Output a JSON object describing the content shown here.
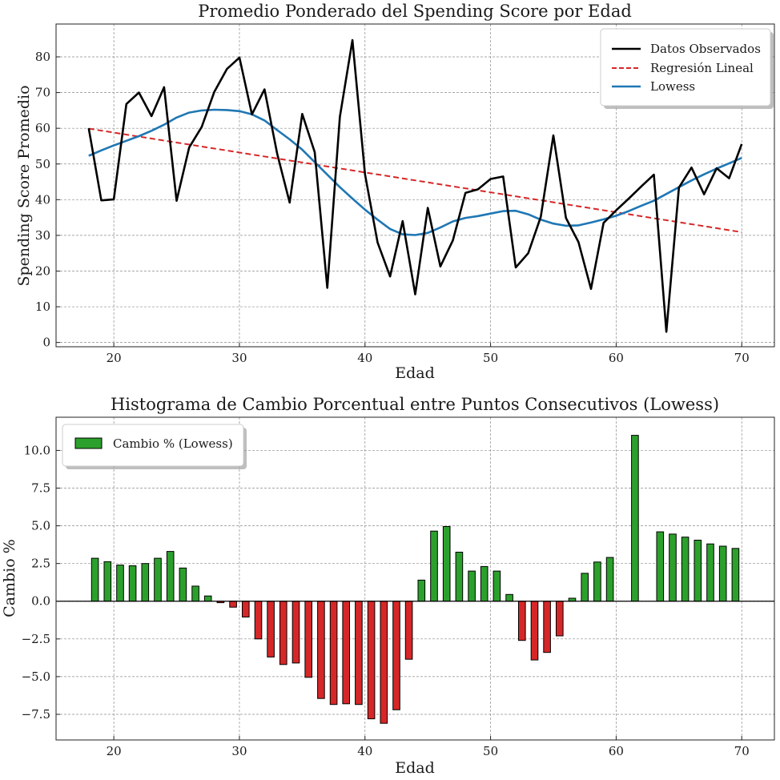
{
  "chart_data": [
    {
      "type": "line",
      "title": "Promedio Ponderado del Spending Score por Edad",
      "xlabel": "Edad",
      "ylabel": "Spending Score Promedio",
      "xlim": [
        15.4,
        72.6
      ],
      "ylim": [
        -1.2,
        89.2
      ],
      "xticks": [
        20,
        30,
        40,
        50,
        60,
        70
      ],
      "yticks": [
        0,
        10,
        20,
        30,
        40,
        50,
        60,
        70,
        80
      ],
      "grid": true,
      "legend_position": "top-right",
      "series": [
        {
          "name": "Datos Observados",
          "color": "#000000",
          "style": "solid",
          "x": [
            18,
            19,
            20,
            21,
            22,
            23,
            24,
            25,
            26,
            27,
            28,
            29,
            30,
            31,
            32,
            33,
            34,
            35,
            36,
            37,
            38,
            39,
            40,
            41,
            42,
            43,
            44,
            45,
            46,
            47,
            48,
            49,
            50,
            51,
            52,
            53,
            54,
            55,
            56,
            57,
            58,
            59,
            60,
            61,
            62,
            63,
            64,
            65,
            66,
            67,
            68,
            69,
            70
          ],
          "y": [
            60,
            39.8,
            40.1,
            66.8,
            70,
            63.4,
            71.5,
            39.7,
            54.6,
            60.4,
            70.2,
            76.6,
            79.8,
            63.9,
            70.9,
            53,
            39.2,
            64,
            53.3,
            15.3,
            63.2,
            84.7,
            47.1,
            28,
            18.5,
            34,
            13.5,
            37.7,
            21.3,
            28.6,
            41.9,
            42.9,
            45.8,
            46.5,
            21,
            25,
            35.2,
            58,
            34.9,
            28.1,
            15,
            33.5,
            37,
            40.3,
            43.7,
            47,
            3,
            43.4,
            49,
            41.5,
            48.8,
            46,
            55.6
          ]
        },
        {
          "name": "Regresión Lineal",
          "color": "#d62728",
          "style": "dashed",
          "x": [
            18,
            70
          ],
          "y": [
            59.9,
            30.9
          ]
        },
        {
          "name": "Lowess",
          "color": "#1f77b4",
          "style": "solid",
          "x": [
            18,
            19,
            20,
            21,
            22,
            23,
            24,
            25,
            26,
            27,
            28,
            29,
            30,
            31,
            32,
            33,
            34,
            35,
            36,
            37,
            38,
            39,
            40,
            41,
            42,
            43,
            44,
            45,
            46,
            47,
            48,
            49,
            50,
            51,
            52,
            53,
            54,
            55,
            56,
            57,
            58,
            59,
            60,
            61,
            62,
            63,
            64,
            65,
            66,
            67,
            68,
            69,
            70
          ],
          "y": [
            52.3,
            53.8,
            55.2,
            56.5,
            57.8,
            59.3,
            61,
            63,
            64.4,
            65,
            65.2,
            65.1,
            64.8,
            63.9,
            62.2,
            59.5,
            56.9,
            54,
            50.5,
            47,
            43.5,
            40.3,
            37.2,
            34.4,
            31.8,
            30.3,
            30.1,
            30.7,
            32.2,
            33.9,
            34.9,
            35.4,
            36.1,
            36.8,
            36.9,
            35.9,
            34.4,
            33.3,
            32.7,
            32.8,
            33.6,
            34.5,
            35.5,
            36.8,
            38.3,
            39.7,
            41.6,
            43.5,
            45.4,
            47.1,
            48.7,
            50.2,
            51.7
          ]
        }
      ]
    },
    {
      "type": "bar",
      "title": "Histograma de Cambio Porcentual entre Puntos Consecutivos (Lowess)",
      "xlabel": "Edad",
      "ylabel": "Cambio %",
      "xlim": [
        15.4,
        72.6
      ],
      "ylim": [
        -9.2,
        12.2
      ],
      "xticks": [
        20,
        30,
        40,
        50,
        60,
        70
      ],
      "yticks": [
        -7.5,
        -5.0,
        -2.5,
        0.0,
        2.5,
        5.0,
        7.5,
        10.0
      ],
      "grid": true,
      "legend_position": "top-left",
      "positive_color": "#2ca02c",
      "negative_color": "#d62728",
      "series": [
        {
          "name": "Cambio % (Lowess)",
          "x": [
            18.5,
            19.5,
            20.5,
            21.5,
            22.5,
            23.5,
            24.5,
            25.5,
            26.5,
            27.5,
            28.5,
            29.5,
            30.5,
            31.5,
            32.5,
            33.5,
            34.5,
            35.5,
            36.5,
            37.5,
            38.5,
            39.5,
            40.5,
            41.5,
            42.5,
            43.5,
            44.5,
            45.5,
            46.5,
            47.5,
            48.5,
            49.5,
            50.5,
            51.5,
            52.5,
            53.5,
            54.5,
            55.5,
            56.5,
            57.5,
            58.5,
            59.5,
            61.5,
            63.5,
            64.5,
            65.5,
            66.5,
            67.5,
            68.5,
            69.5
          ],
          "values": [
            2.85,
            2.62,
            2.4,
            2.35,
            2.5,
            2.85,
            3.3,
            2.2,
            1.0,
            0.35,
            -0.1,
            -0.4,
            -1.05,
            -2.5,
            -3.7,
            -4.2,
            -4.1,
            -5.05,
            -6.45,
            -6.85,
            -6.8,
            -6.85,
            -7.8,
            -8.1,
            -7.2,
            -3.85,
            1.4,
            4.65,
            4.95,
            3.25,
            2.0,
            2.3,
            2.0,
            0.45,
            -2.6,
            -3.9,
            -3.4,
            -2.3,
            0.2,
            1.85,
            2.6,
            2.9,
            11.0,
            4.6,
            4.45,
            4.25,
            4.05,
            3.8,
            3.65,
            3.5
          ]
        }
      ]
    }
  ]
}
